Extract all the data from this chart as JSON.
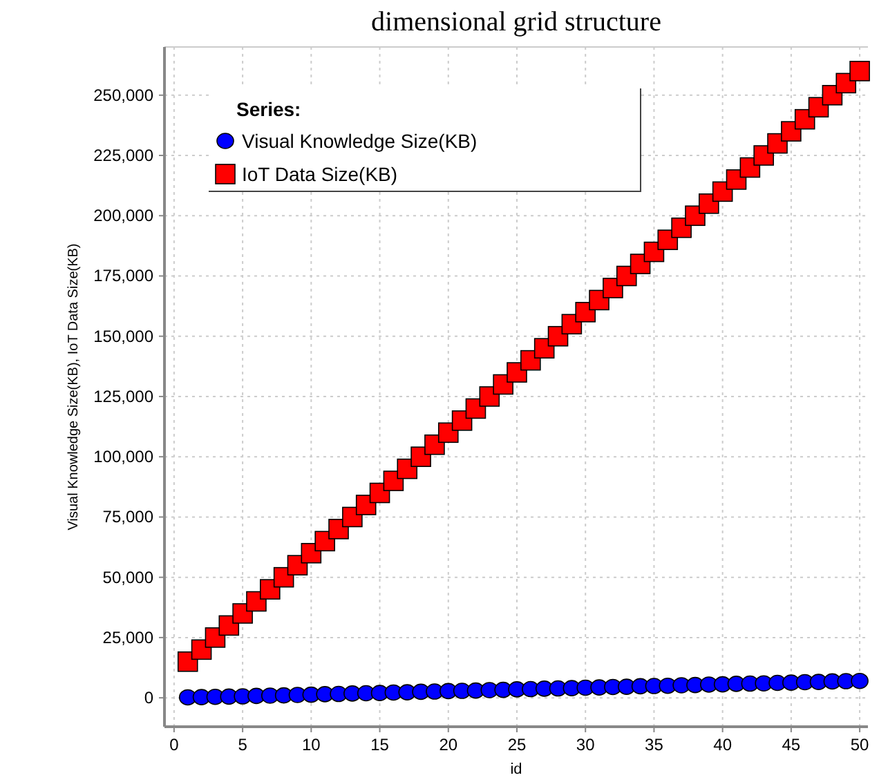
{
  "chart_data": {
    "type": "scatter",
    "title": "dimensional grid structure",
    "xlabel": "id",
    "ylabel": "Visual Knowledge Size(KB), IoT Data Size(KB)",
    "legend_title": "Series:",
    "x": [
      1,
      2,
      3,
      4,
      5,
      6,
      7,
      8,
      9,
      10,
      11,
      12,
      13,
      14,
      15,
      16,
      17,
      18,
      19,
      20,
      21,
      22,
      23,
      24,
      25,
      26,
      27,
      28,
      29,
      30,
      31,
      32,
      33,
      34,
      35,
      36,
      37,
      38,
      39,
      40,
      41,
      42,
      43,
      44,
      45,
      46,
      47,
      48,
      49,
      50
    ],
    "series": [
      {
        "name": "Visual Knowledge Size(KB)",
        "color": "#0000ff",
        "marker": "circle",
        "values": [
          200,
          300,
          400,
          500,
          600,
          800,
          900,
          1000,
          1200,
          1300,
          1500,
          1600,
          1800,
          1900,
          2000,
          2200,
          2300,
          2500,
          2600,
          2800,
          2900,
          3000,
          3200,
          3300,
          3500,
          3600,
          3800,
          3900,
          4000,
          4200,
          4300,
          4500,
          4600,
          4800,
          4900,
          5000,
          5200,
          5300,
          5500,
          5600,
          5800,
          5900,
          6000,
          6200,
          6300,
          6500,
          6600,
          6800,
          6900,
          7000
        ]
      },
      {
        "name": "IoT Data Size(KB)",
        "color": "#ff0000",
        "marker": "square",
        "values": [
          15000,
          20000,
          25000,
          30000,
          35000,
          40000,
          45000,
          50000,
          55000,
          60000,
          65000,
          70000,
          75000,
          80000,
          85000,
          90000,
          95000,
          100000,
          105000,
          110000,
          115000,
          120000,
          125000,
          130000,
          135000,
          140000,
          145000,
          150000,
          155000,
          160000,
          165000,
          170000,
          175000,
          180000,
          185000,
          190000,
          195000,
          200000,
          205000,
          210000,
          215000,
          220000,
          225000,
          230000,
          235000,
          240000,
          245000,
          250000,
          255000,
          260000
        ]
      }
    ],
    "xlim": [
      -0.7,
      50.6
    ],
    "xticks": [
      0,
      5,
      10,
      15,
      20,
      25,
      30,
      35,
      40,
      45,
      50
    ],
    "ylim": [
      -12000,
      270000
    ],
    "yticks": [
      {
        "value": 0,
        "label": "0"
      },
      {
        "value": 25000,
        "label": "25,000"
      },
      {
        "value": 50000,
        "label": "50,000"
      },
      {
        "value": 75000,
        "label": "75,000"
      },
      {
        "value": 100000,
        "label": "100,000"
      },
      {
        "value": 125000,
        "label": "125,000"
      },
      {
        "value": 150000,
        "label": "150,000"
      },
      {
        "value": 175000,
        "label": "175,000"
      },
      {
        "value": 200000,
        "label": "200,000"
      },
      {
        "value": 225000,
        "label": "225,000"
      },
      {
        "value": 250000,
        "label": "250,000"
      }
    ],
    "grid": true,
    "legend": "top left"
  }
}
